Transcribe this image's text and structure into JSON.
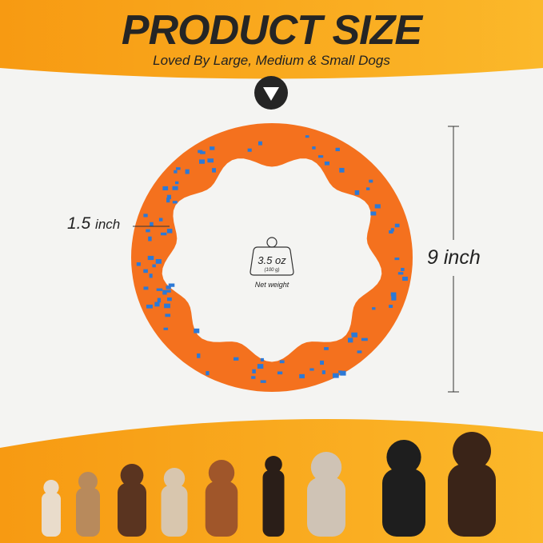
{
  "header": {
    "title": "PRODUCT SIZE",
    "subtitle": "Loved By Large, Medium & Small Dogs",
    "arrow_icon": "down-triangle-in-circle"
  },
  "dimensions": {
    "width_value": "1.5",
    "width_unit": "inch",
    "height_value": "9",
    "height_unit": "inch"
  },
  "weight": {
    "value": "3.5 oz",
    "grams": "(100 g)",
    "label": "Net weight",
    "icon": "weight-icon"
  },
  "colors": {
    "banner": "#f9a81c",
    "ring": "#f4711e",
    "speckle": "#2c79d6",
    "text": "#252525"
  }
}
